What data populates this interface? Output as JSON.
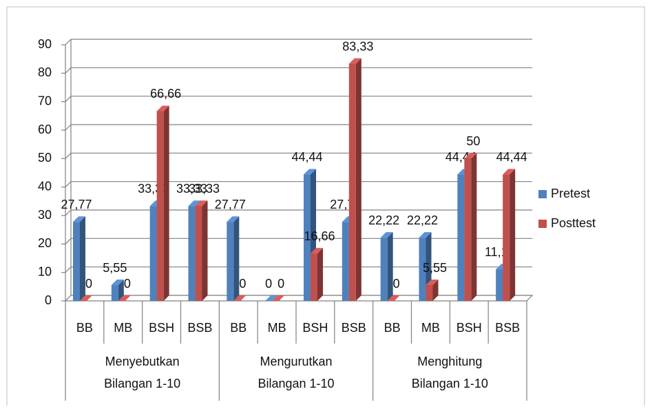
{
  "chart_data": {
    "type": "bar",
    "groups": [
      [
        "Menyebutkan",
        "Bilangan 1-10"
      ],
      [
        "Mengurutkan",
        "Bilangan 1-10"
      ],
      [
        "Menghitung",
        "Bilangan 1-10"
      ]
    ],
    "categories": [
      "BB",
      "MB",
      "BSH",
      "BSB",
      "BB",
      "MB",
      "BSH",
      "BSB",
      "BB",
      "MB",
      "BSH",
      "BSB"
    ],
    "series": [
      {
        "name": "Pretest",
        "color": "#4f81bd",
        "values": [
          27.77,
          5.55,
          33.33,
          33.33,
          27.77,
          0,
          44.44,
          27.77,
          22.22,
          22.22,
          44.44,
          11.11
        ],
        "value_labels": [
          "27,77",
          "5,55",
          "33,33",
          "33,33",
          "27,77",
          "0",
          "44,44",
          "27,77",
          "22,22",
          "22,22",
          "44,44",
          "11,11"
        ]
      },
      {
        "name": "Posttest",
        "color": "#c0504d",
        "values": [
          0,
          0,
          66.66,
          33.33,
          0,
          0,
          16.66,
          83.33,
          0,
          5.55,
          50,
          44.44
        ],
        "value_labels": [
          "0",
          "0",
          "66,66",
          "33,33",
          "0",
          "0",
          "16,66",
          "83,33",
          "0",
          "5,55",
          "50",
          "44,44"
        ]
      }
    ],
    "ylim": [
      0,
      90
    ],
    "yticks": [
      0,
      10,
      20,
      30,
      40,
      50,
      60,
      70,
      80,
      90
    ],
    "grid": true,
    "legend": "right"
  }
}
